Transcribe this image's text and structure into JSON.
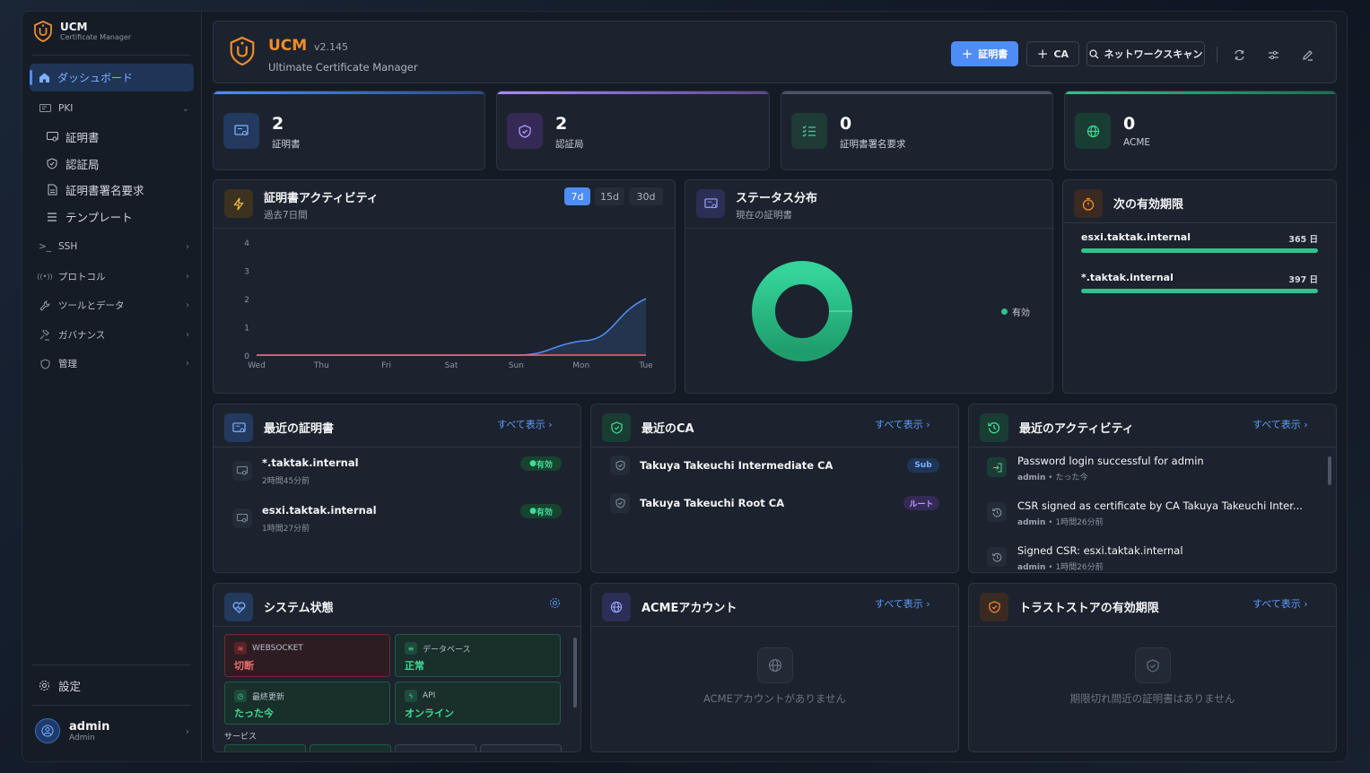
{
  "sidebar": {
    "brand_name": "UCM",
    "brand_sub": "Certificate Manager",
    "dashboard": "ダッシュボード",
    "pki": "PKI",
    "pki_items": [
      "証明書",
      "認証局",
      "証明書署名要求",
      "テンプレート"
    ],
    "sections": [
      "SSH",
      "プロトコル",
      "ツールとデータ",
      "ガバナンス",
      "管理"
    ],
    "settings": "設定",
    "user_name": "admin",
    "user_role": "Admin"
  },
  "header": {
    "title": "UCM",
    "version": "v2.145",
    "subtitle": "Ultimate Certificate Manager",
    "btn_cert": "証明書",
    "btn_ca": "CA",
    "btn_scan": "ネットワークスキャン"
  },
  "stats": [
    {
      "value": "2",
      "label": "証明書",
      "color": "#4f8df6"
    },
    {
      "value": "2",
      "label": "認証局",
      "color": "#a78bfa"
    },
    {
      "value": "0",
      "label": "証明書署名要求",
      "color": "#6b7280"
    },
    {
      "value": "0",
      "label": "ACME",
      "color": "#2fc38a"
    }
  ],
  "activity": {
    "title": "証明書アクティビティ",
    "subtitle": "過去7日間",
    "tabs": [
      "7d",
      "15d",
      "30d"
    ],
    "active_tab": "7d"
  },
  "chart_data": {
    "type": "line",
    "categories": [
      "Wed",
      "Thu",
      "Fri",
      "Sat",
      "Sun",
      "Mon",
      "Tue"
    ],
    "series": [
      {
        "values": [
          0,
          0,
          0,
          0,
          0,
          0.5,
          2
        ],
        "color": "#4f8df6"
      },
      {
        "values": [
          0,
          0,
          0,
          0,
          0,
          0,
          0
        ],
        "color": "#ef6b6b"
      }
    ],
    "yticks": [
      "0",
      "1",
      "2",
      "3",
      "4"
    ],
    "ylim": [
      0,
      4
    ]
  },
  "status": {
    "title": "ステータス分布",
    "subtitle": "現在の証明書",
    "legend": "有効",
    "color": "#2fc38a"
  },
  "expiry": {
    "title": "次の有効期限",
    "items": [
      {
        "name": "esxi.taktak.internal",
        "days": "365 日",
        "fill": 1.0
      },
      {
        "name": "*.taktak.internal",
        "days": "397 日",
        "fill": 1.0
      }
    ]
  },
  "recent_certs": {
    "title": "最近の証明書",
    "link": "すべて表示",
    "items": [
      {
        "name": "*.taktak.internal",
        "time": "2時間45分前",
        "badge": "有効"
      },
      {
        "name": "esxi.taktak.internal",
        "time": "1時間27分前",
        "badge": "有効"
      }
    ]
  },
  "recent_ca": {
    "title": "最近のCA",
    "link": "すべて表示",
    "items": [
      {
        "name": "Takuya Takeuchi Intermediate CA",
        "badge": "Sub"
      },
      {
        "name": "Takuya Takeuchi Root CA",
        "badge": "ルート"
      }
    ]
  },
  "recent_activity": {
    "title": "最近のアクティビティ",
    "link": "すべて表示",
    "items": [
      {
        "text": "Password login successful for admin",
        "user": "admin",
        "time": "たった今"
      },
      {
        "text": "CSR signed as certificate by CA Takuya Takeuchi Inter...",
        "user": "admin",
        "time": "1時間26分前"
      },
      {
        "text": "Signed CSR: esxi.taktak.internal",
        "user": "admin",
        "time": "1時間26分前"
      }
    ]
  },
  "system": {
    "title": "システム状態",
    "tiles": [
      {
        "label": "WEBSOCKET",
        "value": "切断",
        "state": "error"
      },
      {
        "label": "データベース",
        "value": "正常",
        "state": "ok"
      },
      {
        "label": "最終更新",
        "value": "たった今",
        "state": "ok"
      },
      {
        "label": "API",
        "value": "オンライン",
        "state": "ok"
      }
    ],
    "services": "サービス"
  },
  "acme": {
    "title": "ACMEアカウント",
    "link": "すべて表示",
    "empty": "ACMEアカウントがありません"
  },
  "truststore": {
    "title": "トラストストアの有効期限",
    "link": "すべて表示",
    "empty": "期限切れ間近の証明書はありません"
  }
}
